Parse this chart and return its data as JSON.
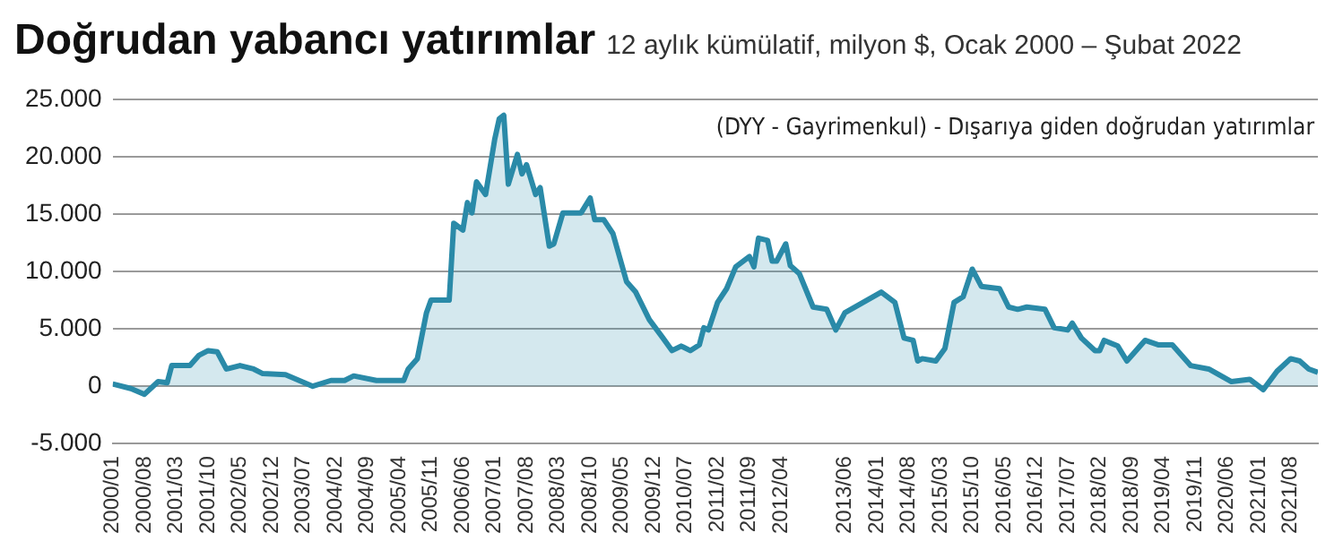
{
  "chart_data": {
    "type": "area",
    "title": "Doğrudan yabancı yatırımlar",
    "subtitle": "12 aylık kümülatif, milyon $, Ocak 2000 – Şubat 2022",
    "annotations": [
      "(DYY - Gayrimenkul) - Dışarıya giden doğrudan yatırımlar"
    ],
    "series": [
      {
        "color": "#2a8aa8",
        "x": [
          "2000-01",
          "2000-05",
          "2000-08",
          "2000-11",
          "2001-01",
          "2001-02",
          "2001-06",
          "2001-08",
          "2001-10",
          "2001-12",
          "2002-02",
          "2002-05",
          "2002-08",
          "2002-10",
          "2003-03",
          "2003-09",
          "2004-01",
          "2004-04",
          "2004-06",
          "2004-11",
          "2005-05",
          "2005-06",
          "2005-08",
          "2005-10",
          "2005-11",
          "2006-03",
          "2006-04",
          "2006-06",
          "2006-07",
          "2006-08",
          "2006-09",
          "2006-11",
          "2007-01",
          "2007-02",
          "2007-03",
          "2007-04",
          "2007-06",
          "2007-07",
          "2007-08",
          "2007-10",
          "2007-11",
          "2008-01",
          "2008-02",
          "2008-04",
          "2008-08",
          "2008-10",
          "2008-11",
          "2009-01",
          "2009-03",
          "2009-06",
          "2009-08",
          "2009-11",
          "2010-02",
          "2010-04",
          "2010-06",
          "2010-08",
          "2010-10",
          "2010-11",
          "2010-12",
          "2011-02",
          "2011-04",
          "2011-06",
          "2011-09",
          "2011-10",
          "2011-11",
          "2012-01",
          "2012-02",
          "2012-03",
          "2012-05",
          "2012-06",
          "2012-08",
          "2012-11",
          "2013-02",
          "2013-04",
          "2013-06",
          "2013-10",
          "2014-02",
          "2014-05",
          "2014-07",
          "2014-09",
          "2014-10",
          "2014-11",
          "2015-02",
          "2015-04",
          "2015-06",
          "2015-08",
          "2015-10",
          "2015-12",
          "2016-04",
          "2016-06",
          "2016-08",
          "2016-10",
          "2017-02",
          "2017-04",
          "2017-07",
          "2017-08",
          "2017-10",
          "2018-01",
          "2018-02",
          "2018-03",
          "2018-06",
          "2018-08",
          "2018-12",
          "2019-03",
          "2019-06",
          "2019-10",
          "2020-02",
          "2020-07",
          "2020-11",
          "2021-02",
          "2021-05",
          "2021-08",
          "2021-10",
          "2021-12",
          "2022-02"
        ],
        "values": [
          200,
          -200,
          -700,
          400,
          300,
          1800,
          1800,
          2700,
          3100,
          3000,
          1500,
          1800,
          1500,
          1100,
          1000,
          0,
          500,
          500,
          900,
          500,
          500,
          1500,
          2400,
          6400,
          7500,
          7500,
          14200,
          13600,
          16000,
          15100,
          17800,
          16700,
          21500,
          23300,
          23600,
          17600,
          20200,
          18500,
          19300,
          16700,
          17300,
          12200,
          12400,
          15100,
          15100,
          16400,
          14500,
          14500,
          13300,
          9100,
          8200,
          5800,
          4200,
          3100,
          3500,
          3100,
          3600,
          5100,
          4900,
          7300,
          8500,
          10400,
          11300,
          10400,
          12900,
          12700,
          10900,
          10900,
          12400,
          10500,
          9800,
          6900,
          6700,
          4900,
          6400,
          7300,
          8200,
          7300,
          4200,
          4000,
          2200,
          2400,
          2200,
          3300,
          7300,
          7800,
          10200,
          8700,
          8500,
          6900,
          6700,
          6900,
          6700,
          5100,
          4900,
          5500,
          4200,
          3100,
          3100,
          4000,
          3500,
          2200,
          4000,
          3600,
          3600,
          1800,
          1500,
          400,
          600,
          -300,
          1300,
          2400,
          2200,
          1500,
          1200
        ]
      }
    ],
    "xlim": [
      "2000-01",
      "2022-02"
    ],
    "xticks": [
      {
        "value": "2000-01",
        "label": "2000/01"
      },
      {
        "value": "2000-08",
        "label": "2000/08"
      },
      {
        "value": "2001-03",
        "label": "2001/03"
      },
      {
        "value": "2001-10",
        "label": "2001/10"
      },
      {
        "value": "2002-05",
        "label": "2002/05"
      },
      {
        "value": "2002-12",
        "label": "2002/12"
      },
      {
        "value": "2003-07",
        "label": "2003/07"
      },
      {
        "value": "2004-02",
        "label": "2004/02"
      },
      {
        "value": "2004-09",
        "label": "2004/09"
      },
      {
        "value": "2005-04",
        "label": "2005/04"
      },
      {
        "value": "2005-11",
        "label": "2005/11"
      },
      {
        "value": "2006-06",
        "label": "2006/06"
      },
      {
        "value": "2007-01",
        "label": "2007/01"
      },
      {
        "value": "2007-08",
        "label": "2007/08"
      },
      {
        "value": "2008-03",
        "label": "2008/03"
      },
      {
        "value": "2008-10",
        "label": "2008/10"
      },
      {
        "value": "2009-05",
        "label": "2009/05"
      },
      {
        "value": "2009-12",
        "label": "2009/12"
      },
      {
        "value": "2010-07",
        "label": "2010/07"
      },
      {
        "value": "2011-02",
        "label": "2011/02"
      },
      {
        "value": "2011-09",
        "label": "2011/09"
      },
      {
        "value": "2012-04",
        "label": "2012/04"
      },
      {
        "value": "2013-06",
        "label": "2013/06"
      },
      {
        "value": "2014-01",
        "label": "2014/01"
      },
      {
        "value": "2014-08",
        "label": "2014/08"
      },
      {
        "value": "2015-03",
        "label": "2015/03"
      },
      {
        "value": "2015-10",
        "label": "2015/10"
      },
      {
        "value": "2016-05",
        "label": "2016/05"
      },
      {
        "value": "2016-12",
        "label": "2016/12"
      },
      {
        "value": "2017-07",
        "label": "2017/07"
      },
      {
        "value": "2018-02",
        "label": "2018/02"
      },
      {
        "value": "2018-09",
        "label": "2018/09"
      },
      {
        "value": "2019-04",
        "label": "2019/04"
      },
      {
        "value": "2019-11",
        "label": "2019/11"
      },
      {
        "value": "2020-06",
        "label": "2020/06"
      },
      {
        "value": "2021-01",
        "label": "2021/01"
      },
      {
        "value": "2021-08",
        "label": "2021/08"
      }
    ],
    "ylim": [
      -5000,
      25000
    ],
    "yticks": [
      {
        "value": -5000,
        "label": "-5.000"
      },
      {
        "value": 0,
        "label": "0"
      },
      {
        "value": 5000,
        "label": "5.000"
      },
      {
        "value": 10000,
        "label": "10.000"
      },
      {
        "value": 15000,
        "label": "15.000"
      },
      {
        "value": 20000,
        "label": "20.000"
      },
      {
        "value": 25000,
        "label": "25.000"
      }
    ],
    "grid": "y",
    "legend": false,
    "marker": "none",
    "line_style": "solid"
  }
}
